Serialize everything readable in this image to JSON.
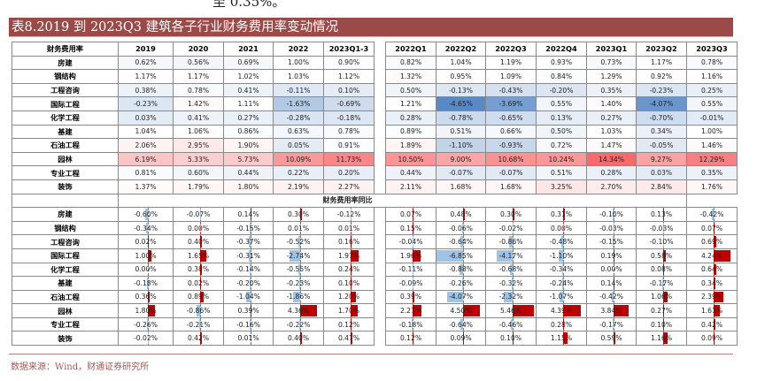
{
  "top_text": "至 0.35%。",
  "title": "表8.2019 到 2023Q3 建筑各子行业财务费用率变动情况",
  "table": {
    "corner_label": "财务费用率",
    "columns": [
      "2019",
      "2020",
      "2021",
      "2022",
      "2023Q1-3",
      "2022Q1",
      "2022Q2",
      "2022Q3",
      "2022Q4",
      "2023Q1",
      "2023Q2",
      "2023Q3"
    ],
    "rate_rows": [
      {
        "label": "房建",
        "values": [
          "0.62%",
          "0.56%",
          "0.69%",
          "1.00%",
          "0.90%",
          "0.82%",
          "1.04%",
          "1.19%",
          "0.93%",
          "0.73%",
          "1.17%",
          "0.78%"
        ]
      },
      {
        "label": "钢结构",
        "values": [
          "1.17%",
          "1.17%",
          "1.02%",
          "1.03%",
          "1.12%",
          "1.32%",
          "0.95%",
          "1.09%",
          "0.84%",
          "1.29%",
          "0.92%",
          "1.16%"
        ]
      },
      {
        "label": "工程咨询",
        "values": [
          "0.38%",
          "0.78%",
          "0.41%",
          "-0.11%",
          "0.10%",
          "0.50%",
          "-0.13%",
          "-0.43%",
          "-0.20%",
          "0.35%",
          "-0.23%",
          "0.25%"
        ]
      },
      {
        "label": "国际工程",
        "values": [
          "-0.23%",
          "1.42%",
          "1.11%",
          "-1.63%",
          "-0.69%",
          "1.21%",
          "-4.65%",
          "-3.69%",
          "0.55%",
          "1.40%",
          "-4.07%",
          "0.55%"
        ]
      },
      {
        "label": "化学工程",
        "values": [
          "0.03%",
          "0.41%",
          "0.27%",
          "-0.28%",
          "-0.18%",
          "0.28%",
          "-0.78%",
          "-0.65%",
          "0.13%",
          "0.27%",
          "-0.70%",
          "-0.01%"
        ]
      },
      {
        "label": "基建",
        "values": [
          "1.04%",
          "1.06%",
          "0.86%",
          "0.63%",
          "0.78%",
          "0.89%",
          "0.51%",
          "0.66%",
          "0.50%",
          "1.03%",
          "0.34%",
          "1.00%"
        ]
      },
      {
        "label": "石油工程",
        "values": [
          "2.06%",
          "2.95%",
          "1.90%",
          "0.05%",
          "0.91%",
          "1.89%",
          "-1.10%",
          "-0.93%",
          "0.72%",
          "1.47%",
          "-0.05%",
          "1.46%"
        ]
      },
      {
        "label": "园林",
        "values": [
          "6.19%",
          "5.33%",
          "5.73%",
          "10.09%",
          "11.73%",
          "10.50%",
          "9.00%",
          "10.68%",
          "10.24%",
          "14.34%",
          "9.27%",
          "12.29%"
        ]
      },
      {
        "label": "专业工程",
        "values": [
          "0.81%",
          "0.60%",
          "0.44%",
          "0.22%",
          "0.20%",
          "0.44%",
          "-0.07%",
          "-0.07%",
          "0.51%",
          "0.28%",
          "0.03%",
          "0.35%"
        ]
      },
      {
        "label": "装饰",
        "values": [
          "1.37%",
          "1.79%",
          "1.80%",
          "2.19%",
          "2.27%",
          "2.11%",
          "1.68%",
          "1.68%",
          "3.25%",
          "2.70%",
          "2.84%",
          "1.76%"
        ]
      }
    ],
    "yoy_title": "财务费用率同比",
    "yoy_rows": [
      {
        "label": "房建",
        "values": [
          "-0.60%",
          "-0.07%",
          "0.14%",
          "0.30%",
          "-0.12%",
          "0.07%",
          "0.48%",
          "0.30%",
          "0.31%",
          "-0.10%",
          "0.13%",
          "-0.42%"
        ]
      },
      {
        "label": "钢结构",
        "values": [
          "-0.34%",
          "0.00%",
          "-0.15%",
          "0.01%",
          "0.01%",
          "0.15%",
          "-0.06%",
          "-0.02%",
          "0.00%",
          "-0.03%",
          "-0.03%",
          "0.07%"
        ]
      },
      {
        "label": "工程咨询",
        "values": [
          "0.02%",
          "0.40%",
          "-0.37%",
          "-0.52%",
          "0.16%",
          "-0.04%",
          "-0.64%",
          "-0.86%",
          "-0.48%",
          "-0.15%",
          "-0.10%",
          "0.69%"
        ]
      },
      {
        "label": "国际工程",
        "values": [
          "1.00%",
          "1.65%",
          "-0.31%",
          "-2.74%",
          "1.97%",
          "1.96%",
          "-6.85%",
          "-4.17%",
          "-1.10%",
          "0.19%",
          "0.58%",
          "4.24%"
        ]
      },
      {
        "label": "化学工程",
        "values": [
          "0.00%",
          "0.38%",
          "-0.14%",
          "-0.55%",
          "0.24%",
          "-0.11%",
          "-0.88%",
          "-0.68%",
          "-0.34%",
          "0.00%",
          "0.08%",
          "0.64%"
        ]
      },
      {
        "label": "基建",
        "values": [
          "-0.18%",
          "0.02%",
          "-0.20%",
          "-0.23%",
          "0.10%",
          "-0.09%",
          "-0.26%",
          "-0.32%",
          "-0.24%",
          "0.14%",
          "-0.17%",
          "0.34%"
        ]
      },
      {
        "label": "石油工程",
        "values": [
          "0.36%",
          "0.89%",
          "-1.04%",
          "-1.86%",
          "1.20%",
          "0.39%",
          "-4.07%",
          "-2.32%",
          "-1.07%",
          "-0.42%",
          "1.06%",
          "2.39%"
        ]
      },
      {
        "label": "园林",
        "values": [
          "1.80%",
          "-0.86%",
          "0.39%",
          "4.36%",
          "1.70%",
          "2.27%",
          "4.50%",
          "5.46%",
          "4.39%",
          "3.84%",
          "0.27%",
          "1.61%"
        ]
      },
      {
        "label": "专业工程",
        "values": [
          "-0.26%",
          "-0.21%",
          "-0.16%",
          "-0.22%",
          "0.12%",
          "-0.18%",
          "-0.64%",
          "-0.46%",
          "0.28%",
          "-0.17%",
          "0.10%",
          "0.42%"
        ]
      },
      {
        "label": "装饰",
        "values": [
          "-0.02%",
          "0.42%",
          "0.01%",
          "0.40%",
          "0.47%",
          "0.12%",
          "0.09%",
          "0.10%",
          "1.15%",
          "0.59%",
          "1.16%",
          "0.09%"
        ]
      }
    ]
  },
  "colors": {
    "title_bg": "#9b4a47",
    "heat_low": "#5a8ac6",
    "heat_mid": "#ffffff",
    "heat_high": "#f8696b",
    "bar_pos": "#c00000",
    "bar_neg": "#9dc3e6"
  },
  "source": "数据来源：Wind，财通证券研究所"
}
